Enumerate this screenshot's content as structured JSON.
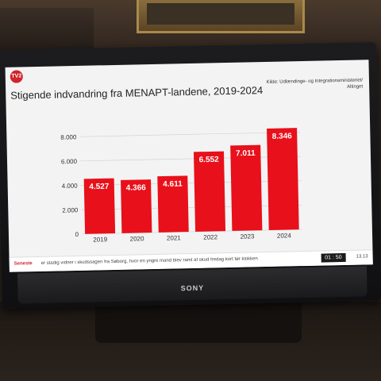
{
  "ticker": {
    "tag": "Seneste",
    "text": "er stadig vidner i skudssagen fra Søborg, hvor en yngre mand blev ramt af skud fredag kort før klokken",
    "time": "13.13",
    "clock": "01 : 50"
  },
  "brand": "SONY",
  "logo": "TV2",
  "colors": {
    "bar": "#e8101a",
    "accent": "#d1232a"
  },
  "chart_data": {
    "type": "bar",
    "title": "Stigende indvandring fra MENAPT-landene, 2019-2024",
    "source": "Kilde: Udlændinge- og Integrationsministeriet/ Altinget",
    "categories": [
      "2019",
      "2020",
      "2021",
      "2022",
      "2023",
      "2024"
    ],
    "values": [
      4527,
      4366,
      4611,
      6552,
      7011,
      8346
    ],
    "value_labels": [
      "4.527",
      "4.366",
      "4.611",
      "6.552",
      "7.011",
      "8.346"
    ],
    "yticks": [
      "0",
      "2.000",
      "4.000",
      "6.000",
      "8.000"
    ],
    "ytick_values": [
      0,
      2000,
      4000,
      6000,
      8000
    ],
    "ylim": [
      0,
      8346
    ],
    "grid": true
  }
}
